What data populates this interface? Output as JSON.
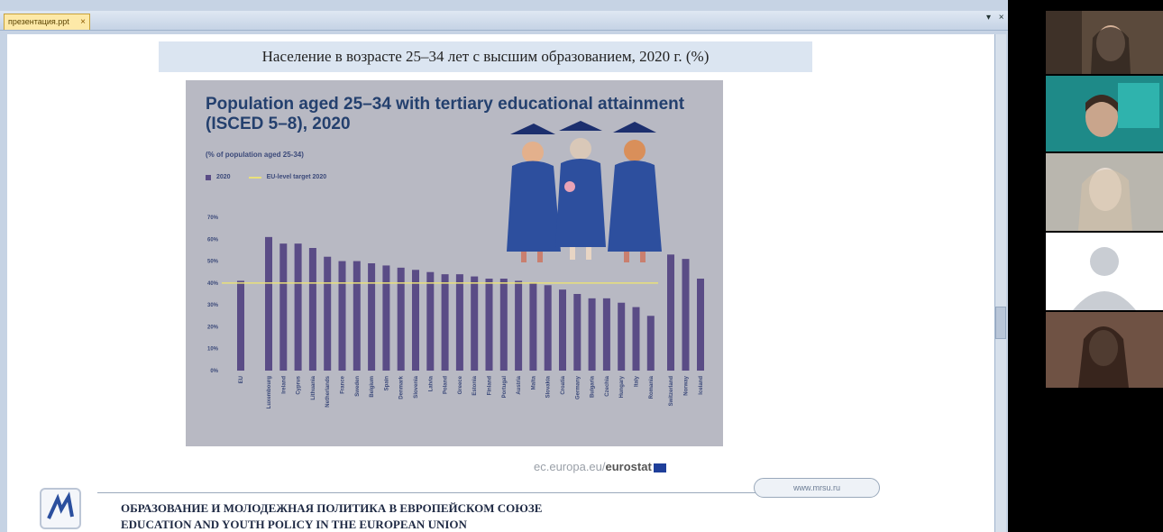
{
  "tab": {
    "label": "презентация.ppt",
    "close": "×"
  },
  "window_controls": "▾ ×",
  "slide": {
    "title": "Население в возрасте 25–34 лет с высшим образованием, 2020 г. (%)",
    "source_plain": "ec.europa.eu/",
    "source_bold": "eurostat",
    "url": "www.mrsu.ru",
    "footer_ru": "ОБРАЗОВАНИЕ И МОЛОДЕЖНАЯ ПОЛИТИКА В ЕВРОПЕЙСКОМ СОЮЗЕ",
    "footer_en": "EDUCATION AND YOUTH POLICY IN THE EUROPEAN UNION"
  },
  "infographic": {
    "title_line1": "Population aged 25–34 with tertiary educational attainment",
    "title_line2": "(ISCED 5–8), 2020",
    "subtitle": "(% of population aged 25-34)",
    "legend_bar": "2020",
    "legend_line": "EU-level target 2020"
  },
  "chart_data": {
    "type": "bar",
    "ylim": [
      0,
      70
    ],
    "yticks": [
      "0%",
      "10%",
      "20%",
      "30%",
      "40%",
      "50%",
      "60%",
      "70%"
    ],
    "target": 40,
    "categories": [
      "EU",
      "Luxembourg",
      "Ireland",
      "Cyprus",
      "Lithuania",
      "Netherlands",
      "France",
      "Sweden",
      "Belgium",
      "Spain",
      "Denmark",
      "Slovenia",
      "Latvia",
      "Poland",
      "Greece",
      "Estonia",
      "Finland",
      "Portugal",
      "Austria",
      "Malta",
      "Slovakia",
      "Croatia",
      "Germany",
      "Bulgaria",
      "Czechia",
      "Hungary",
      "Italy",
      "Romania",
      "Switzerland",
      "Norway",
      "Iceland"
    ],
    "values": [
      41,
      61,
      58,
      58,
      56,
      52,
      50,
      50,
      49,
      48,
      47,
      46,
      45,
      44,
      44,
      43,
      42,
      42,
      41,
      40,
      39,
      37,
      35,
      33,
      33,
      31,
      29,
      25,
      53,
      51,
      42
    ],
    "series": [
      {
        "name": "2020",
        "color": "#5a4c86"
      }
    ],
    "target_color": "#e9e07a",
    "grid": false
  },
  "participants": [
    {
      "name": "",
      "bg": "#5b4a3c"
    },
    {
      "name": "",
      "bg": "#1e8a88"
    },
    {
      "name": "",
      "bg": "#8e8a82"
    },
    {
      "name": "",
      "bg": "#ffffff"
    },
    {
      "name": "",
      "bg": "#3b2a24"
    }
  ]
}
